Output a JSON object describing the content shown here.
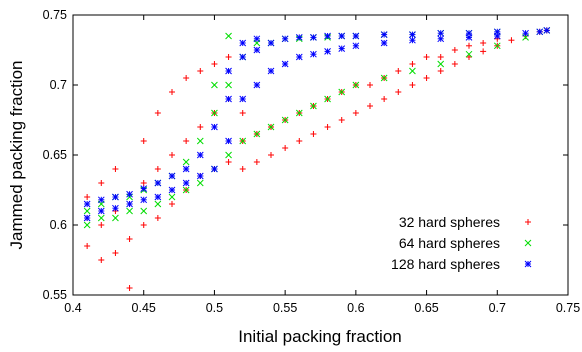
{
  "chart_data": {
    "type": "scatter",
    "title": "",
    "xlabel": "Initial packing fraction",
    "ylabel": "Jammed packing fraction",
    "xlim": [
      0.4,
      0.75
    ],
    "ylim": [
      0.55,
      0.75
    ],
    "x_ticks": [
      "0.4",
      "0.45",
      "0.5",
      "0.55",
      "0.6",
      "0.65",
      "0.7",
      "0.75"
    ],
    "y_ticks": [
      "0.55",
      "0.6",
      "0.65",
      "0.7",
      "0.75"
    ],
    "grid": false,
    "legend_position": "bottom-right",
    "series": [
      {
        "name": "32 hard spheres",
        "marker": "plus",
        "color": "#ff0000",
        "points": [
          [
            0.41,
            0.585
          ],
          [
            0.41,
            0.605
          ],
          [
            0.41,
            0.62
          ],
          [
            0.42,
            0.575
          ],
          [
            0.42,
            0.6
          ],
          [
            0.42,
            0.63
          ],
          [
            0.43,
            0.58
          ],
          [
            0.43,
            0.61
          ],
          [
            0.43,
            0.64
          ],
          [
            0.44,
            0.59
          ],
          [
            0.44,
            0.615
          ],
          [
            0.44,
            0.555
          ],
          [
            0.45,
            0.6
          ],
          [
            0.45,
            0.63
          ],
          [
            0.45,
            0.66
          ],
          [
            0.46,
            0.605
          ],
          [
            0.46,
            0.64
          ],
          [
            0.46,
            0.68
          ],
          [
            0.47,
            0.615
          ],
          [
            0.47,
            0.65
          ],
          [
            0.47,
            0.695
          ],
          [
            0.48,
            0.625
          ],
          [
            0.48,
            0.66
          ],
          [
            0.48,
            0.705
          ],
          [
            0.49,
            0.635
          ],
          [
            0.49,
            0.67
          ],
          [
            0.49,
            0.71
          ],
          [
            0.5,
            0.64
          ],
          [
            0.5,
            0.68
          ],
          [
            0.5,
            0.715
          ],
          [
            0.51,
            0.645
          ],
          [
            0.51,
            0.69
          ],
          [
            0.51,
            0.72
          ],
          [
            0.52,
            0.64
          ],
          [
            0.52,
            0.66
          ],
          [
            0.52,
            0.68
          ],
          [
            0.53,
            0.645
          ],
          [
            0.53,
            0.665
          ],
          [
            0.54,
            0.65
          ],
          [
            0.54,
            0.67
          ],
          [
            0.55,
            0.655
          ],
          [
            0.55,
            0.675
          ],
          [
            0.56,
            0.66
          ],
          [
            0.56,
            0.68
          ],
          [
            0.57,
            0.665
          ],
          [
            0.57,
            0.685
          ],
          [
            0.58,
            0.67
          ],
          [
            0.58,
            0.69
          ],
          [
            0.59,
            0.675
          ],
          [
            0.59,
            0.695
          ],
          [
            0.6,
            0.68
          ],
          [
            0.6,
            0.7
          ],
          [
            0.61,
            0.685
          ],
          [
            0.61,
            0.7
          ],
          [
            0.62,
            0.69
          ],
          [
            0.62,
            0.705
          ],
          [
            0.63,
            0.695
          ],
          [
            0.63,
            0.71
          ],
          [
            0.64,
            0.7
          ],
          [
            0.64,
            0.715
          ],
          [
            0.65,
            0.705
          ],
          [
            0.65,
            0.72
          ],
          [
            0.66,
            0.71
          ],
          [
            0.66,
            0.72
          ],
          [
            0.67,
            0.715
          ],
          [
            0.67,
            0.725
          ],
          [
            0.68,
            0.72
          ],
          [
            0.68,
            0.728
          ],
          [
            0.69,
            0.724
          ],
          [
            0.69,
            0.73
          ],
          [
            0.7,
            0.728
          ],
          [
            0.7,
            0.733
          ],
          [
            0.71,
            0.732
          ],
          [
            0.72,
            0.735
          ],
          [
            0.73,
            0.738
          ],
          [
            0.735,
            0.739
          ]
        ]
      },
      {
        "name": "64 hard spheres",
        "marker": "cross",
        "color": "#00dd00",
        "points": [
          [
            0.41,
            0.6
          ],
          [
            0.41,
            0.61
          ],
          [
            0.42,
            0.605
          ],
          [
            0.42,
            0.615
          ],
          [
            0.43,
            0.605
          ],
          [
            0.43,
            0.62
          ],
          [
            0.44,
            0.61
          ],
          [
            0.44,
            0.62
          ],
          [
            0.45,
            0.61
          ],
          [
            0.45,
            0.625
          ],
          [
            0.46,
            0.615
          ],
          [
            0.46,
            0.63
          ],
          [
            0.47,
            0.62
          ],
          [
            0.47,
            0.635
          ],
          [
            0.48,
            0.625
          ],
          [
            0.48,
            0.645
          ],
          [
            0.49,
            0.63
          ],
          [
            0.49,
            0.66
          ],
          [
            0.5,
            0.64
          ],
          [
            0.5,
            0.68
          ],
          [
            0.5,
            0.7
          ],
          [
            0.51,
            0.65
          ],
          [
            0.51,
            0.7
          ],
          [
            0.51,
            0.735
          ],
          [
            0.52,
            0.66
          ],
          [
            0.52,
            0.72
          ],
          [
            0.53,
            0.665
          ],
          [
            0.53,
            0.73
          ],
          [
            0.54,
            0.67
          ],
          [
            0.54,
            0.73
          ],
          [
            0.55,
            0.675
          ],
          [
            0.55,
            0.733
          ],
          [
            0.56,
            0.68
          ],
          [
            0.56,
            0.733
          ],
          [
            0.57,
            0.685
          ],
          [
            0.57,
            0.734
          ],
          [
            0.58,
            0.69
          ],
          [
            0.58,
            0.734
          ],
          [
            0.59,
            0.695
          ],
          [
            0.59,
            0.735
          ],
          [
            0.6,
            0.7
          ],
          [
            0.6,
            0.735
          ],
          [
            0.62,
            0.705
          ],
          [
            0.62,
            0.736
          ],
          [
            0.64,
            0.71
          ],
          [
            0.64,
            0.736
          ],
          [
            0.66,
            0.715
          ],
          [
            0.66,
            0.737
          ],
          [
            0.68,
            0.722
          ],
          [
            0.68,
            0.737
          ],
          [
            0.7,
            0.728
          ],
          [
            0.7,
            0.738
          ],
          [
            0.72,
            0.734
          ],
          [
            0.73,
            0.738
          ],
          [
            0.735,
            0.739
          ]
        ]
      },
      {
        "name": "128 hard spheres",
        "marker": "star",
        "color": "#0000ff",
        "points": [
          [
            0.41,
            0.605
          ],
          [
            0.41,
            0.615
          ],
          [
            0.42,
            0.61
          ],
          [
            0.42,
            0.618
          ],
          [
            0.43,
            0.612
          ],
          [
            0.43,
            0.62
          ],
          [
            0.44,
            0.615
          ],
          [
            0.44,
            0.622
          ],
          [
            0.45,
            0.618
          ],
          [
            0.45,
            0.626
          ],
          [
            0.46,
            0.62
          ],
          [
            0.46,
            0.63
          ],
          [
            0.47,
            0.625
          ],
          [
            0.47,
            0.635
          ],
          [
            0.48,
            0.63
          ],
          [
            0.48,
            0.64
          ],
          [
            0.49,
            0.635
          ],
          [
            0.49,
            0.65
          ],
          [
            0.5,
            0.64
          ],
          [
            0.5,
            0.67
          ],
          [
            0.51,
            0.66
          ],
          [
            0.51,
            0.69
          ],
          [
            0.51,
            0.71
          ],
          [
            0.52,
            0.69
          ],
          [
            0.52,
            0.72
          ],
          [
            0.52,
            0.73
          ],
          [
            0.53,
            0.7
          ],
          [
            0.53,
            0.725
          ],
          [
            0.53,
            0.733
          ],
          [
            0.54,
            0.71
          ],
          [
            0.54,
            0.73
          ],
          [
            0.55,
            0.715
          ],
          [
            0.55,
            0.733
          ],
          [
            0.56,
            0.72
          ],
          [
            0.56,
            0.734
          ],
          [
            0.57,
            0.722
          ],
          [
            0.57,
            0.734
          ],
          [
            0.58,
            0.724
          ],
          [
            0.58,
            0.735
          ],
          [
            0.59,
            0.726
          ],
          [
            0.59,
            0.735
          ],
          [
            0.6,
            0.728
          ],
          [
            0.6,
            0.735
          ],
          [
            0.62,
            0.73
          ],
          [
            0.62,
            0.736
          ],
          [
            0.64,
            0.732
          ],
          [
            0.64,
            0.736
          ],
          [
            0.66,
            0.733
          ],
          [
            0.66,
            0.737
          ],
          [
            0.68,
            0.734
          ],
          [
            0.68,
            0.737
          ],
          [
            0.7,
            0.735
          ],
          [
            0.7,
            0.738
          ],
          [
            0.72,
            0.737
          ],
          [
            0.73,
            0.738
          ],
          [
            0.735,
            0.739
          ]
        ]
      }
    ]
  }
}
